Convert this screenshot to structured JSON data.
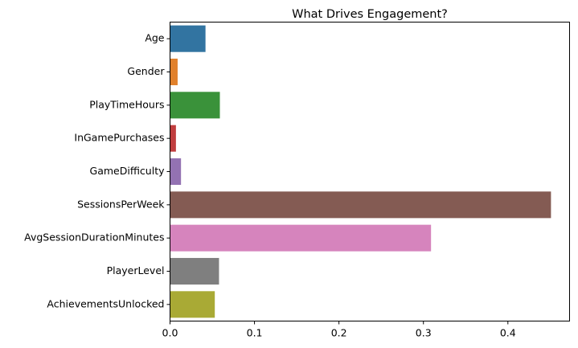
{
  "chart_data": {
    "type": "bar",
    "orientation": "horizontal",
    "title": "What Drives Engagement?",
    "xlabel": "",
    "ylabel": "",
    "categories": [
      "Age",
      "Gender",
      "PlayTimeHours",
      "InGamePurchases",
      "GameDifficulty",
      "SessionsPerWeek",
      "AvgSessionDurationMinutes",
      "PlayerLevel",
      "AchievementsUnlocked"
    ],
    "values": [
      0.042,
      0.009,
      0.059,
      0.007,
      0.013,
      0.451,
      0.309,
      0.058,
      0.053
    ],
    "colors": [
      "#3274a1",
      "#e1812c",
      "#3a923a",
      "#c03d3e",
      "#9372b2",
      "#845b53",
      "#d684bd",
      "#7f7f7f",
      "#a9aa35"
    ],
    "xlim": [
      0,
      0.473
    ],
    "xticks": [
      "0.0",
      "0.1",
      "0.2",
      "0.3",
      "0.4"
    ],
    "xtick_values": [
      0.0,
      0.1,
      0.2,
      0.3,
      0.4
    ],
    "grid": false,
    "legend": "none"
  }
}
